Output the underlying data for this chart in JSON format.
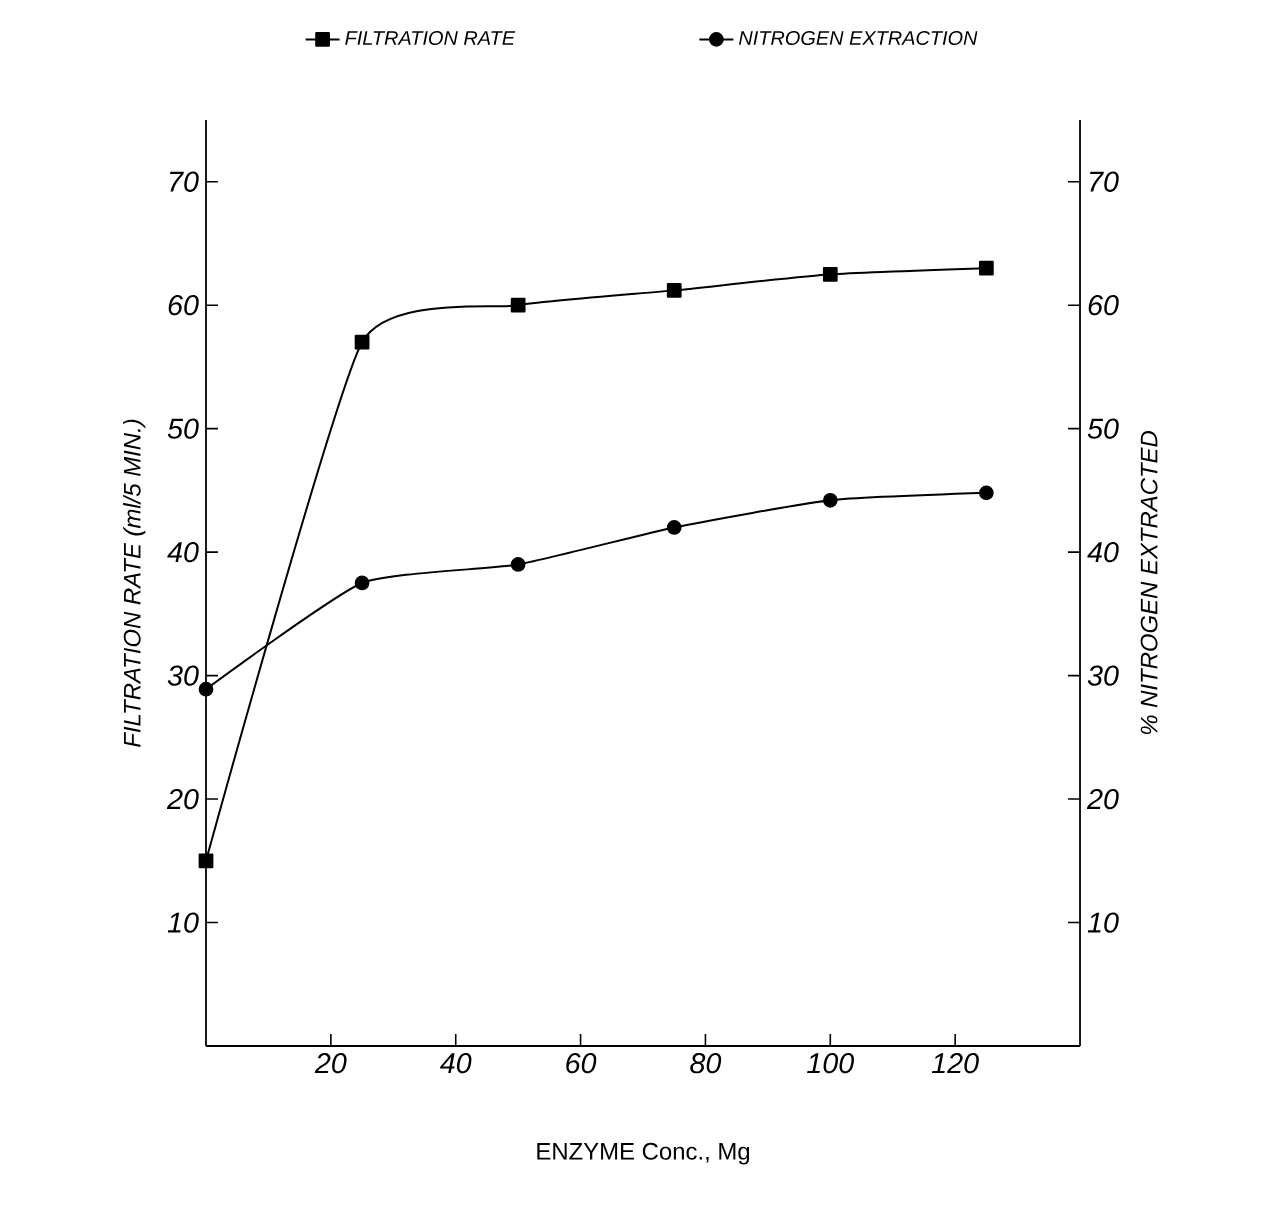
{
  "chart_data": {
    "type": "line",
    "xlabel": "ENZYME Conc., Mg",
    "ylabel": "FILTRATION RATE  (ml/5 MIN.)",
    "y2label": "% NITROGEN EXTRACTED",
    "x": [
      0,
      25,
      50,
      75,
      100,
      125
    ],
    "series": [
      {
        "name": "FILTRATION RATE",
        "color": "#000000",
        "marker": "square",
        "values": [
          15,
          57,
          60,
          61.2,
          62.5,
          63
        ]
      },
      {
        "name": "NITROGEN EXTRACTION",
        "color": "#000000",
        "marker": "circle",
        "axis": "y2",
        "values": [
          28.9,
          37.5,
          39,
          42,
          44.2,
          44.8
        ]
      }
    ],
    "xlim": [
      0,
      140
    ],
    "xticks": [
      20,
      40,
      60,
      80,
      100,
      120
    ],
    "ylim": [
      0,
      75
    ],
    "yticks": [
      10,
      20,
      30,
      40,
      50,
      60,
      70
    ],
    "y2lim": [
      0,
      75
    ],
    "y2ticks": [
      10,
      20,
      30,
      40,
      50,
      60,
      70
    ],
    "legend": "top",
    "line_style": "solid"
  }
}
